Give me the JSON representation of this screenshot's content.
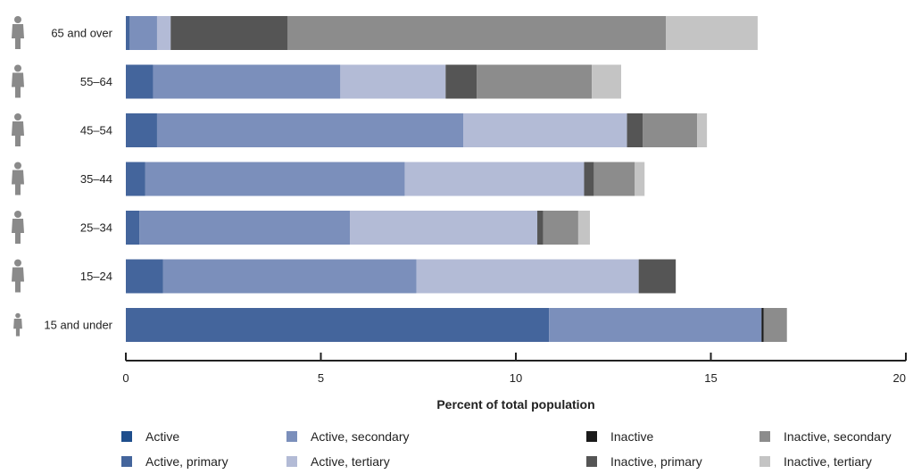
{
  "chart_data": {
    "type": "bar",
    "orientation": "horizontal",
    "stacked": true,
    "categories": [
      "65 and over",
      "55–64",
      "45–54",
      "35–44",
      "25–34",
      "15–24",
      "15 and under"
    ],
    "series": [
      {
        "name": "Active",
        "color": "#1f4e8c",
        "values": [
          0,
          0,
          0,
          0,
          0,
          0,
          0
        ]
      },
      {
        "name": "Active, primary",
        "color": "#44659c",
        "values": [
          0.1,
          0.7,
          0.8,
          0.5,
          0.35,
          0.95,
          10.85
        ]
      },
      {
        "name": "Active, secondary",
        "color": "#7b8fbb",
        "values": [
          0.7,
          4.8,
          7.85,
          6.65,
          5.4,
          6.5,
          5.45
        ]
      },
      {
        "name": "Active, tertiary",
        "color": "#b3bbd6",
        "values": [
          0.35,
          2.7,
          4.2,
          4.6,
          4.8,
          5.7,
          0
        ]
      },
      {
        "name": "Inactive",
        "color": "#1a1a1a",
        "values": [
          0,
          0,
          0,
          0,
          0,
          0,
          0.05
        ]
      },
      {
        "name": "Inactive, primary",
        "color": "#555555",
        "values": [
          3.0,
          0.8,
          0.4,
          0.25,
          0.15,
          0.95,
          0
        ]
      },
      {
        "name": "Inactive, secondary",
        "color": "#8c8c8c",
        "values": [
          9.7,
          2.95,
          1.4,
          1.05,
          0.9,
          0,
          0.6
        ]
      },
      {
        "name": "Inactive, tertiary",
        "color": "#c4c4c4",
        "values": [
          2.35,
          0.75,
          0.25,
          0.25,
          0.3,
          0,
          0
        ]
      }
    ],
    "xlabel": "Percent of total population",
    "xlim": [
      0,
      20
    ],
    "xticks": [
      0,
      5,
      10,
      15,
      20
    ],
    "grid": false,
    "legend_position": "bottom"
  },
  "icons": {
    "person_icon": "person-icon",
    "person_color": "#8a8a8a"
  }
}
